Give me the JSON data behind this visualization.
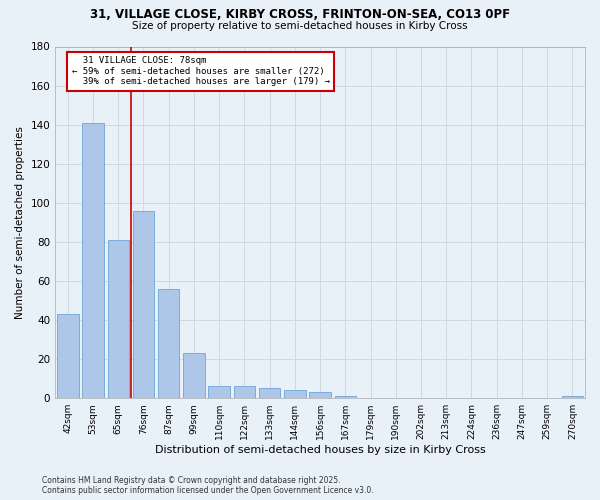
{
  "title1": "31, VILLAGE CLOSE, KIRBY CROSS, FRINTON-ON-SEA, CO13 0PF",
  "title2": "Size of property relative to semi-detached houses in Kirby Cross",
  "xlabel": "Distribution of semi-detached houses by size in Kirby Cross",
  "ylabel": "Number of semi-detached properties",
  "bar_labels": [
    "42sqm",
    "53sqm",
    "65sqm",
    "76sqm",
    "87sqm",
    "99sqm",
    "110sqm",
    "122sqm",
    "133sqm",
    "144sqm",
    "156sqm",
    "167sqm",
    "179sqm",
    "190sqm",
    "202sqm",
    "213sqm",
    "224sqm",
    "236sqm",
    "247sqm",
    "259sqm",
    "270sqm"
  ],
  "bar_values": [
    43,
    141,
    81,
    96,
    56,
    23,
    6,
    6,
    5,
    4,
    3,
    1,
    0,
    0,
    0,
    0,
    0,
    0,
    0,
    0,
    1
  ],
  "bar_color": "#aec6e8",
  "bar_edge_color": "#5b9bd5",
  "subject_label": "31 VILLAGE CLOSE: 78sqm",
  "pct_smaller": 59,
  "n_smaller": 272,
  "pct_larger": 39,
  "n_larger": 179,
  "annotation_box_color": "#ffffff",
  "annotation_box_edge": "#cc0000",
  "vline_color": "#cc0000",
  "vline_x": 2.5,
  "ylim": [
    0,
    180
  ],
  "yticks": [
    0,
    20,
    40,
    60,
    80,
    100,
    120,
    140,
    160,
    180
  ],
  "grid_color": "#d0d8e4",
  "bg_color": "#e8f0f8",
  "footnote1": "Contains HM Land Registry data © Crown copyright and database right 2025.",
  "footnote2": "Contains public sector information licensed under the Open Government Licence v3.0."
}
